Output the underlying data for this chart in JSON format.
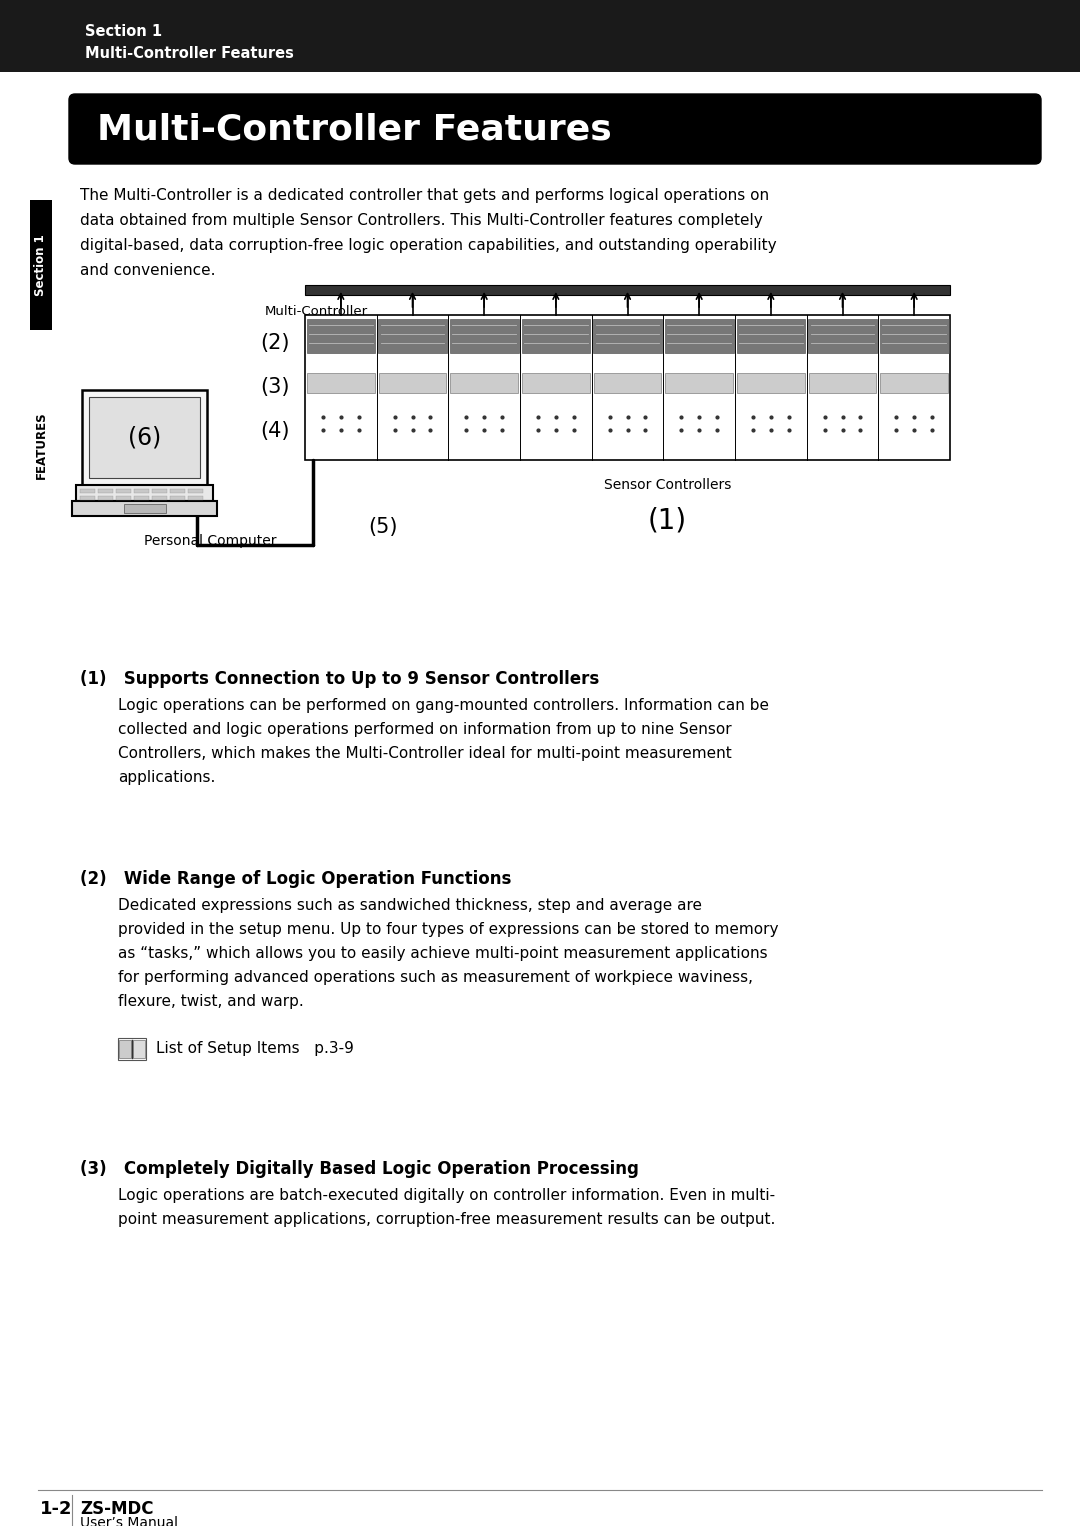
{
  "page_bg": "#ffffff",
  "header_bg": "#1a1a1a",
  "header_text1": "Section 1",
  "header_text2": "Multi-Controller Features",
  "header_text_color": "#ffffff",
  "title_text": "Multi-Controller Features",
  "title_bg": "#000000",
  "title_text_color": "#ffffff",
  "sidebar_section_bg": "#000000",
  "sidebar_section_text": "Section 1",
  "sidebar_features_text": "FEATURES",
  "sidebar_text_color": "#ffffff",
  "sidebar_features_color": "#000000",
  "intro_text": "The Multi-Controller is a dedicated controller that gets and performs logical operations on\ndata obtained from multiple Sensor Controllers. This Multi-Controller features completely\ndigital-based, data corruption-free logic operation capabilities, and outstanding operability\nand convenience.",
  "section1_title": "(1)   Supports Connection to Up to 9 Sensor Controllers",
  "section1_body": "Logic operations can be performed on gang-mounted controllers. Information can be\ncollected and logic operations performed on information from up to nine Sensor\nControllers, which makes the Multi-Controller ideal for multi-point measurement\napplications.",
  "section2_title": "(2)   Wide Range of Logic Operation Functions",
  "section2_body": "Dedicated expressions such as sandwiched thickness, step and average are\nprovided in the setup menu. Up to four types of expressions can be stored to memory\nas “tasks,” which allows you to easily achieve multi-point measurement applications\nfor performing advanced operations such as measurement of workpiece waviness,\nflexure, twist, and warp.",
  "section2_note": "List of Setup Items   p.3-9",
  "section3_title": "(3)   Completely Digitally Based Logic Operation Processing",
  "section3_body": "Logic operations are batch-executed digitally on controller information. Even in multi-\npoint measurement applications, corruption-free measurement results can be output.",
  "footer_page": "1-2",
  "footer_model": "ZS-MDC",
  "footer_manual": "User’s Manual",
  "n_sensor_controllers": 9,
  "diagram": {
    "multi_controller_label": "Multi-Controller",
    "sensor_controllers_label": "Sensor Controllers",
    "personal_computer_label": "Personal Computer",
    "label1": "(1)",
    "label2": "(2)",
    "label3": "(3)",
    "label4": "(4)",
    "label5": "(5)",
    "label6": "(6)"
  }
}
